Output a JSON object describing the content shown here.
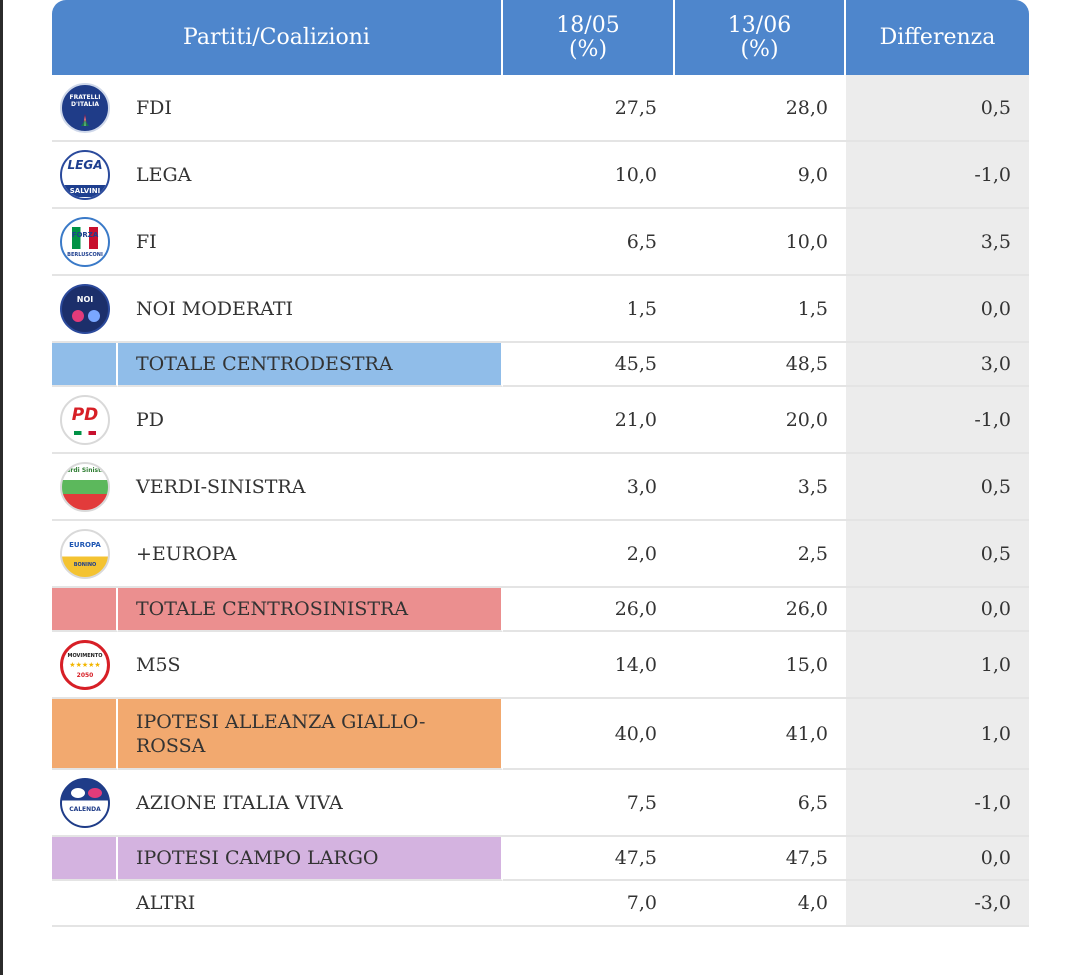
{
  "header": {
    "col_party": "Partiti/Coalizioni",
    "col_date1_line1": "18/05",
    "col_date1_line2": "(%)",
    "col_date2_line1": "13/06",
    "col_date2_line2": "(%)",
    "col_diff": "Differenza"
  },
  "rows": [
    {
      "name": "FDI",
      "v1": "27,5",
      "v2": "28,0",
      "diff": "0,5",
      "logo_text": "FRATELLI D'ITALIA"
    },
    {
      "name": "LEGA",
      "v1": "10,0",
      "v2": "9,0",
      "diff": "-1,0",
      "logo_text": "LEGA",
      "logo_sub": "SALVINI"
    },
    {
      "name": "FI",
      "v1": "6,5",
      "v2": "10,0",
      "diff": "3,5",
      "logo_text": "FORZA",
      "logo_sub": "BERLUSCONI"
    },
    {
      "name": "NOI MODERATI",
      "v1": "1,5",
      "v2": "1,5",
      "diff": "0,0",
      "logo_text": "NOI"
    },
    {
      "name": "TOTALE CENTRODESTRA",
      "v1": "45,5",
      "v2": "48,5",
      "diff": "3,0"
    },
    {
      "name": "PD",
      "v1": "21,0",
      "v2": "20,0",
      "diff": "-1,0",
      "logo_text": "PD"
    },
    {
      "name": "VERDI-SINISTRA",
      "v1": "3,0",
      "v2": "3,5",
      "diff": "0,5",
      "logo_text": "Verdi Sinistra"
    },
    {
      "name": "+EUROPA",
      "v1": "2,0",
      "v2": "2,5",
      "diff": "0,5",
      "logo_text": "EUROPA",
      "logo_sub": "BONINO"
    },
    {
      "name": "TOTALE CENTROSINISTRA",
      "v1": "26,0",
      "v2": "26,0",
      "diff": "0,0"
    },
    {
      "name": "M5S",
      "v1": "14,0",
      "v2": "15,0",
      "diff": "1,0",
      "logo_text": "MOVIMENTO",
      "logo_sub": "2050"
    },
    {
      "name_line1": "IPOTESI ALLEANZA GIALLO-",
      "name_line2": "ROSSA",
      "v1": "40,0",
      "v2": "41,0",
      "diff": "1,0"
    },
    {
      "name": "AZIONE ITALIA VIVA",
      "v1": "7,5",
      "v2": "6,5",
      "diff": "-1,0",
      "logo_text": "CALENDA"
    },
    {
      "name": "IPOTESI CAMPO LARGO",
      "v1": "47,5",
      "v2": "47,5",
      "diff": "0,0"
    },
    {
      "name": "ALTRI",
      "v1": "7,0",
      "v2": "4,0",
      "diff": "-3,0"
    }
  ],
  "colors": {
    "header": "#4e86cc",
    "centrodestra": "#90bde9",
    "centrosinistra": "#eb8f8f",
    "giallorossa": "#f2a96f",
    "campo_largo": "#d4b3e0",
    "difference_column": "#ececec"
  }
}
